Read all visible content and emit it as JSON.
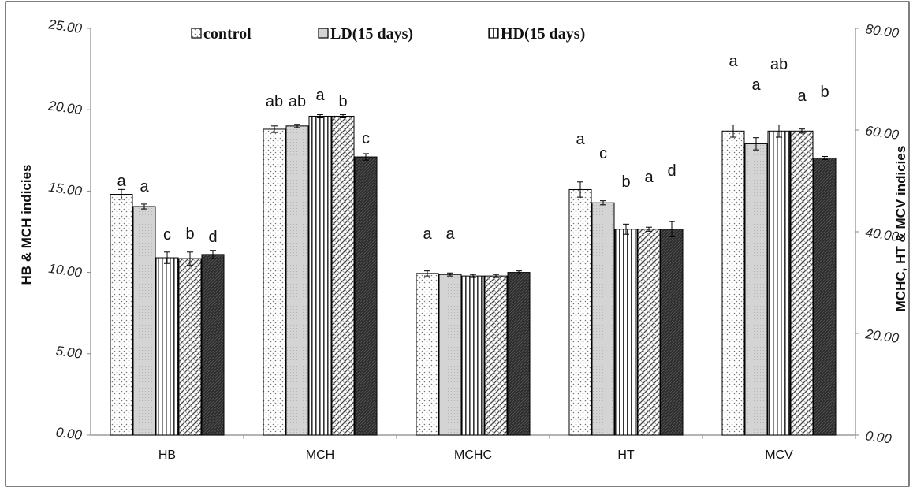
{
  "chart_data": {
    "type": "bar",
    "categories": [
      "HB",
      "MCH",
      "MCHC",
      "HT",
      "MCV"
    ],
    "legend": [
      "control",
      "LD(15 days)",
      "HD(15 days)"
    ],
    "y_left": {
      "label": "HB & MCH indicies",
      "ylim": [
        0,
        25
      ],
      "ticks": [
        "0.00",
        "5.00",
        "10.00",
        "15.00",
        "20.00",
        "25.00"
      ]
    },
    "y_right": {
      "label": "MCHC, HT & MCV indicies",
      "ylim": [
        0,
        80
      ],
      "ticks": [
        "0.00",
        "20.00",
        "40.00",
        "60.00",
        "80.00"
      ]
    },
    "series": [
      {
        "name": "control",
        "values": [
          14.8,
          18.8,
          31.8,
          48.3,
          59.8
        ],
        "errors": [
          0.3,
          0.2,
          0.5,
          1.5,
          1.2
        ]
      },
      {
        "values": [
          14.05,
          19.0,
          31.6,
          45.7,
          57.3
        ],
        "errors": [
          0.15,
          0.1,
          0.3,
          0.4,
          1.2
        ]
      },
      {
        "name": "LD(15 days)",
        "values": [
          10.9,
          19.6,
          31.3,
          40.5,
          59.8
        ],
        "errors": [
          0.35,
          0.1,
          0.3,
          1.0,
          1.2
        ]
      },
      {
        "values": [
          10.85,
          19.6,
          31.3,
          40.5,
          59.8
        ],
        "errors": [
          0.4,
          0.1,
          0.3,
          0.4,
          0.4
        ]
      },
      {
        "name": "HD(15 days)",
        "values": [
          11.1,
          17.1,
          32.0,
          40.5,
          54.5
        ],
        "errors": [
          0.25,
          0.2,
          0.3,
          1.5,
          0.3
        ]
      }
    ],
    "axis_side": [
      "left",
      "left",
      "right",
      "right",
      "right"
    ],
    "significance_letters": [
      [
        "a",
        "a",
        "c",
        "b",
        "d"
      ],
      [
        "ab",
        "ab",
        "a",
        "b",
        "c"
      ],
      [
        "a",
        "a",
        "",
        "",
        ""
      ],
      [
        "a",
        "c",
        "b",
        "a",
        "d"
      ],
      [
        "a",
        "a",
        "ab",
        "a",
        "b"
      ]
    ],
    "grid": false,
    "legend_position": "top"
  }
}
